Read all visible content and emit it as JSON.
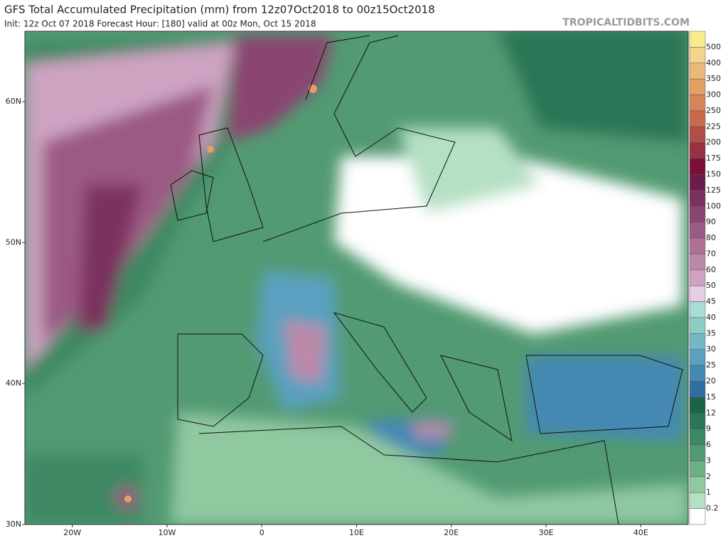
{
  "header": {
    "title": "GFS Total Accumulated Precipitation (mm) from 12z07Oct2018 to 00z15Oct2018",
    "subtitle": "Init: 12z Oct 07 2018   Forecast Hour: [180]   valid at 00z Mon, Oct 15 2018",
    "watermark": "TROPICALTIDBITS.COM"
  },
  "map": {
    "xlim": [
      -25,
      45
    ],
    "ylim": [
      30,
      65
    ],
    "xticks": [
      {
        "value": -20,
        "label": "20W"
      },
      {
        "value": -10,
        "label": "10W"
      },
      0,
      {
        "value": 10,
        "label": "10E"
      },
      {
        "value": 20,
        "label": "20E"
      },
      {
        "value": 30,
        "label": "30E"
      },
      {
        "value": 40,
        "label": "40E"
      }
    ],
    "yticks": [
      {
        "value": 30,
        "label": "30N"
      },
      {
        "value": 40,
        "label": "40N"
      },
      {
        "value": 50,
        "label": "50N"
      },
      {
        "value": 60,
        "label": "60N"
      }
    ]
  },
  "colorbar": {
    "levels": [
      500,
      400,
      350,
      300,
      250,
      225,
      200,
      175,
      150,
      125,
      100,
      90,
      80,
      70,
      60,
      50,
      45,
      40,
      35,
      30,
      25,
      20,
      15,
      12,
      9,
      6,
      3,
      2,
      1,
      0.2
    ],
    "colors": [
      "#fbeb8f",
      "#f2d48a",
      "#eab97a",
      "#e2a064",
      "#d68558",
      "#c76a4e",
      "#b04e48",
      "#963242",
      "#7a0e36",
      "#6a1d4d",
      "#7b315f",
      "#8b4571",
      "#9b5a83",
      "#ad7196",
      "#bd89a9",
      "#cea3c2",
      "#e6cde5",
      "#a7ddd2",
      "#8ccdc4",
      "#73b8c5",
      "#5aa0c0",
      "#4488b4",
      "#2f6ea0",
      "#1b6448",
      "#2b7656",
      "#3c8864",
      "#529a72",
      "#6db086",
      "#90c8a0",
      "#b6e0c4",
      "#ffffff"
    ]
  }
}
